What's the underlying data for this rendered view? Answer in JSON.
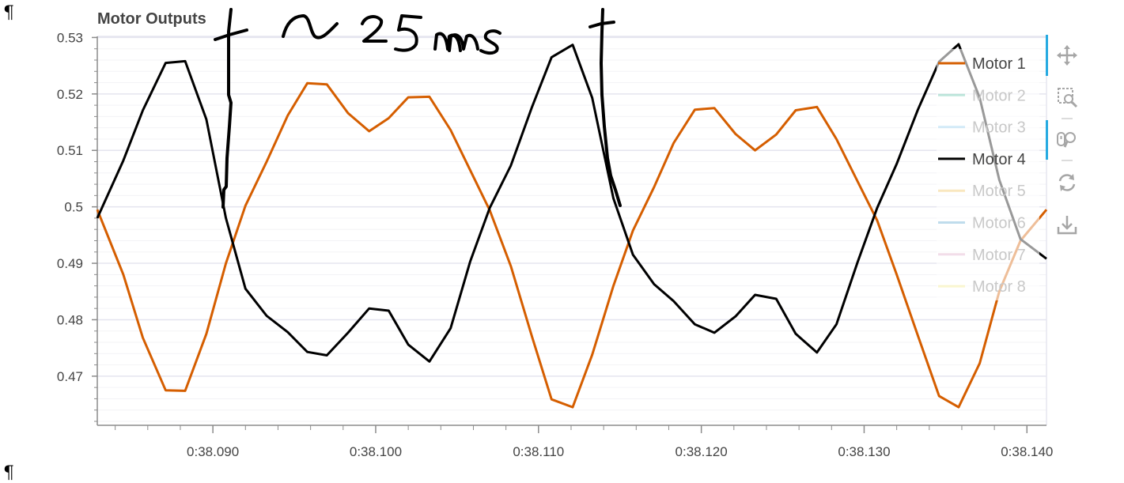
{
  "document": {
    "pilcrow_top": "¶",
    "pilcrow_bottom": "¶"
  },
  "chart_data": {
    "type": "line",
    "title": "Motor Outputs",
    "xlabel": "",
    "ylabel": "",
    "x_tick_labels": [
      "0:38.090",
      "0:38.100",
      "0:38.110",
      "0:38.120",
      "0:38.130",
      "0:38.140"
    ],
    "x_ticks": [
      38.09,
      38.1,
      38.11,
      38.12,
      38.13,
      38.14
    ],
    "x_range": [
      38.0829,
      38.1412
    ],
    "y_ticks": [
      0.47,
      0.48,
      0.49,
      0.5,
      0.51,
      0.52,
      0.53
    ],
    "y_tick_labels": [
      "0.47",
      "0.48",
      "0.49",
      "0.5",
      "0.51",
      "0.52",
      "0.53"
    ],
    "ylim": [
      0.4613,
      0.5302
    ],
    "grid": true,
    "legend_position": "top-right",
    "series": [
      {
        "name": "Motor 1",
        "color": "#d55e00",
        "visible": true,
        "x": [
          38.0829,
          38.0845,
          38.0857,
          38.0871,
          38.0883,
          38.0896,
          38.0908,
          38.092,
          38.0933,
          38.0946,
          38.0958,
          38.097,
          38.0983,
          38.0996,
          38.1008,
          38.102,
          38.1033,
          38.1046,
          38.1058,
          38.107,
          38.1083,
          38.1096,
          38.1108,
          38.1121,
          38.1133,
          38.1146,
          38.1158,
          38.1171,
          38.1183,
          38.1196,
          38.1208,
          38.1221,
          38.1233,
          38.1246,
          38.1258,
          38.1271,
          38.1283,
          38.1296,
          38.1308,
          38.132,
          38.1333,
          38.1346,
          38.1358,
          38.1371,
          38.1383,
          38.1396,
          38.1412
        ],
        "y": [
          0.4995,
          0.488,
          0.4768,
          0.4675,
          0.4674,
          0.4775,
          0.49,
          0.5002,
          0.508,
          0.5162,
          0.5219,
          0.5217,
          0.5166,
          0.5134,
          0.5157,
          0.5194,
          0.5195,
          0.5136,
          0.5065,
          0.4994,
          0.4895,
          0.477,
          0.4659,
          0.4645,
          0.4738,
          0.486,
          0.4958,
          0.5035,
          0.5113,
          0.5172,
          0.5175,
          0.5129,
          0.51,
          0.5128,
          0.5171,
          0.5177,
          0.512,
          0.5045,
          0.4976,
          0.488,
          0.4772,
          0.4665,
          0.4645,
          0.4723,
          0.485,
          0.494,
          0.4995
        ]
      },
      {
        "name": "Motor 4",
        "color": "#000000",
        "visible": true,
        "x": [
          38.0829,
          38.0845,
          38.0857,
          38.0871,
          38.0883,
          38.0896,
          38.0908,
          38.092,
          38.0933,
          38.0946,
          38.0958,
          38.097,
          38.0983,
          38.0996,
          38.1008,
          38.102,
          38.1033,
          38.1046,
          38.1058,
          38.107,
          38.1083,
          38.1096,
          38.1108,
          38.1121,
          38.1133,
          38.1146,
          38.1158,
          38.1171,
          38.1183,
          38.1196,
          38.1208,
          38.1221,
          38.1233,
          38.1246,
          38.1258,
          38.1271,
          38.1283,
          38.1296,
          38.1308,
          38.132,
          38.1333,
          38.1346,
          38.1358,
          38.1371,
          38.1383,
          38.1396,
          38.1412
        ],
        "y": [
          0.498,
          0.5082,
          0.5171,
          0.5255,
          0.5258,
          0.5155,
          0.498,
          0.4855,
          0.4807,
          0.4778,
          0.4743,
          0.4737,
          0.4777,
          0.482,
          0.4816,
          0.4756,
          0.4726,
          0.4785,
          0.4903,
          0.4998,
          0.5073,
          0.5177,
          0.5265,
          0.5287,
          0.5193,
          0.5015,
          0.4915,
          0.4863,
          0.4833,
          0.4792,
          0.4777,
          0.4806,
          0.4844,
          0.4837,
          0.4775,
          0.4742,
          0.4792,
          0.4902,
          0.4998,
          0.5076,
          0.5172,
          0.5257,
          0.5288,
          0.5193,
          0.5048,
          0.4943,
          0.4908
        ]
      },
      {
        "name": "Motor 2",
        "color": "#009e73",
        "visible": false
      },
      {
        "name": "Motor 3",
        "color": "#56b4e9",
        "visible": false
      },
      {
        "name": "Motor 5",
        "color": "#e69f00",
        "visible": false
      },
      {
        "name": "Motor 6",
        "color": "#0072b2",
        "visible": false
      },
      {
        "name": "Motor 7",
        "color": "#cc79a7",
        "visible": false
      },
      {
        "name": "Motor 8",
        "color": "#f0e442",
        "visible": false
      }
    ],
    "legend": [
      {
        "name": "Motor 1",
        "color": "#d55e00",
        "visible": true
      },
      {
        "name": "Motor 2",
        "color": "#009e73",
        "visible": false
      },
      {
        "name": "Motor 3",
        "color": "#56b4e9",
        "visible": false
      },
      {
        "name": "Motor 4",
        "color": "#000000",
        "visible": true
      },
      {
        "name": "Motor 5",
        "color": "#e69f00",
        "visible": false
      },
      {
        "name": "Motor 6",
        "color": "#0072b2",
        "visible": false
      },
      {
        "name": "Motor 7",
        "color": "#cc79a7",
        "visible": false
      },
      {
        "name": "Motor 8",
        "color": "#f0e442",
        "visible": false
      }
    ],
    "annotations": {
      "handwriting_text": "~25ms"
    }
  },
  "toolbar": {
    "tools": [
      {
        "name": "pan",
        "icon": "pan-move-icon",
        "active": true
      },
      {
        "name": "box-zoom",
        "icon": "box-zoom-icon",
        "active": false
      },
      {
        "name": "wheel-zoom",
        "icon": "wheel-zoom-icon",
        "active": true
      },
      {
        "name": "reset",
        "icon": "reset-icon",
        "active": false
      },
      {
        "name": "save",
        "icon": "save-download-icon",
        "active": false
      }
    ],
    "active_color": "#26aae1",
    "icon_color": "#a6a6a6"
  },
  "theme": {
    "grid_color": "#e5e5ef",
    "minor_grid_color": "#f3f3f6",
    "axis_color": "#8c8c8c",
    "tick_label_color": "#444444",
    "title_color": "#444444",
    "inactive_legend_text": "#c8c8c8",
    "legend_text": "#444444"
  }
}
